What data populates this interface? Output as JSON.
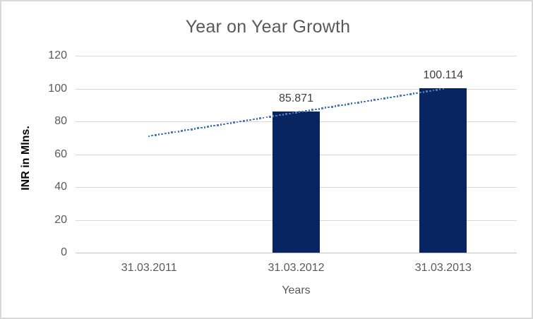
{
  "chart_data": {
    "type": "bar",
    "title": "Year on Year Growth",
    "xlabel": "Years",
    "ylabel": "INR in Mlns.",
    "categories": [
      "31.03.2011",
      "31.03.2012",
      "31.03.2013"
    ],
    "series": [
      {
        "name": "INR in Mlns.",
        "type": "bar",
        "color": "#082562",
        "values": [
          null,
          85.871,
          100.114
        ],
        "data_labels": [
          "",
          "85.871",
          "100.114"
        ]
      },
      {
        "name": "linear-trendline",
        "type": "dotted_line",
        "color": "#4a78bf",
        "points": [
          {
            "category_index": 0,
            "value": 71
          },
          {
            "category_index": 2,
            "value": 99.8
          }
        ]
      }
    ],
    "ylim": [
      0,
      120
    ],
    "yticks": [
      0,
      20,
      40,
      60,
      80,
      100,
      120
    ],
    "grid": true,
    "legend": "none"
  },
  "style": {
    "background": "#ffffff",
    "border_color": "#d9d9d9",
    "gridline_color": "#d9d9d9",
    "axis_line_color": "#c3c3c3",
    "title_color": "#595959",
    "tick_label_color": "#595959",
    "axis_title_color": "#595959",
    "y_axis_title_color": "#000000",
    "data_label_color": "#3f3f3f"
  }
}
